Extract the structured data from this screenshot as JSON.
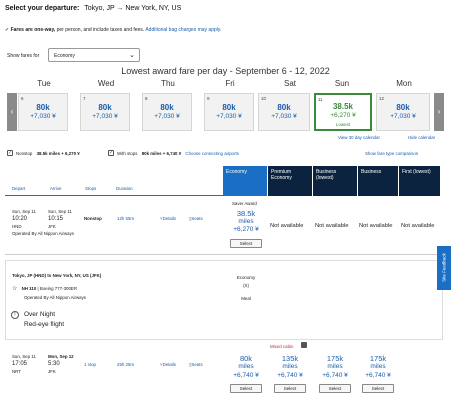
{
  "header": {
    "label": "Select your departure:",
    "route": "Tokyo, JP → New York, NY, US",
    "notice_bold": "Fares are one-way,",
    "notice_rest": " per person, and include taxes and fees.",
    "notice_link": "Additional bag charges may apply."
  },
  "filter": {
    "label": "Show fares for",
    "value": "Economy"
  },
  "calendar": {
    "title": "Lowest award fare per day - September 6 - 12, 2022",
    "days": [
      {
        "name": "Tue",
        "num": "6",
        "amount": "80k",
        "tax": "+7,030 ¥"
      },
      {
        "name": "Wed",
        "num": "7",
        "amount": "80k",
        "tax": "+7,030 ¥"
      },
      {
        "name": "Thu",
        "num": "8",
        "amount": "80k",
        "tax": "+7,030 ¥"
      },
      {
        "name": "Fri",
        "num": "9",
        "amount": "80k",
        "tax": "+7,030 ¥"
      },
      {
        "name": "Sat",
        "num": "10",
        "amount": "80k",
        "tax": "+7,030 ¥"
      },
      {
        "name": "Sun",
        "num": "11",
        "amount": "38.5k",
        "tax": "+6,270 ¥",
        "lowest": "Lowest"
      },
      {
        "name": "Mon",
        "num": "12",
        "amount": "80k",
        "tax": "+7,030 ¥"
      }
    ],
    "view30": "View 30 day calendar",
    "hide": "Hide calendar"
  },
  "stops_filter": {
    "nonstop_label": "Nonstop",
    "nonstop_value": "38.5k miles + 6,270 ¥",
    "withstops_label": "With stops",
    "withstops_value": "80k miles + 6,740 ¥",
    "connecting": "Choose connecting airports",
    "fare_compare": "Show fare type comparison"
  },
  "table_headers": {
    "depart": "Depart",
    "arrive": "Arrive",
    "stops": "Stops",
    "duration": "Duration",
    "cols": [
      "Economy",
      "Premium Economy",
      "Business (lowest)",
      "Business",
      "First (lowest)"
    ]
  },
  "flight1": {
    "depart_date": "Sun, Sep 11",
    "depart_time": "10:20",
    "depart_code": "HND",
    "arrive_date": "Sun, Sep 11",
    "arrive_time": "10:15",
    "arrive_code": "JFK",
    "stops": "Nonstop",
    "duration": "12h 55m",
    "details": "Details",
    "seats": "Seats",
    "operated": "Operated By All Nippon Airways",
    "saver": "Saver Award",
    "amount": "38.5k",
    "miles": "miles",
    "tax": "+6,270 ¥",
    "select": "Select",
    "na": "Not available"
  },
  "details": {
    "route": "Tokyo, JP (HND) to New York, NY, US (JFK)",
    "flight": "NH 110",
    "aircraft": "Boeing 777-300ER",
    "operated": "Operated By All Nippon Airways",
    "cabin_label": "Economy",
    "cabin_code": "(X)",
    "meal": "Meal",
    "overnight": "Over Night",
    "redeye": "Red-eye flight"
  },
  "flight2": {
    "mixed": "Mixed cabin",
    "depart_date": "Sun, Sep 11",
    "depart_time": "17:05",
    "depart_code": "NRT",
    "arrive_date": "Mon, Sep 12",
    "arrive_time": "5:30",
    "arrive_code": "JFK",
    "stops": "1 stop",
    "duration": "25h 25m",
    "details": "Details",
    "seats": "Seats",
    "fares": [
      {
        "amount": "80k",
        "miles": "miles",
        "tax": "+6,740 ¥"
      },
      {
        "amount": "135k",
        "miles": "miles",
        "tax": "+6,740 ¥"
      },
      {
        "amount": "175k",
        "miles": "miles",
        "tax": "+6,740 ¥"
      },
      {
        "amount": "175k",
        "miles": "miles",
        "tax": "+6,740 ¥"
      }
    ],
    "select": "Select"
  },
  "feedback": "Site Feedback"
}
